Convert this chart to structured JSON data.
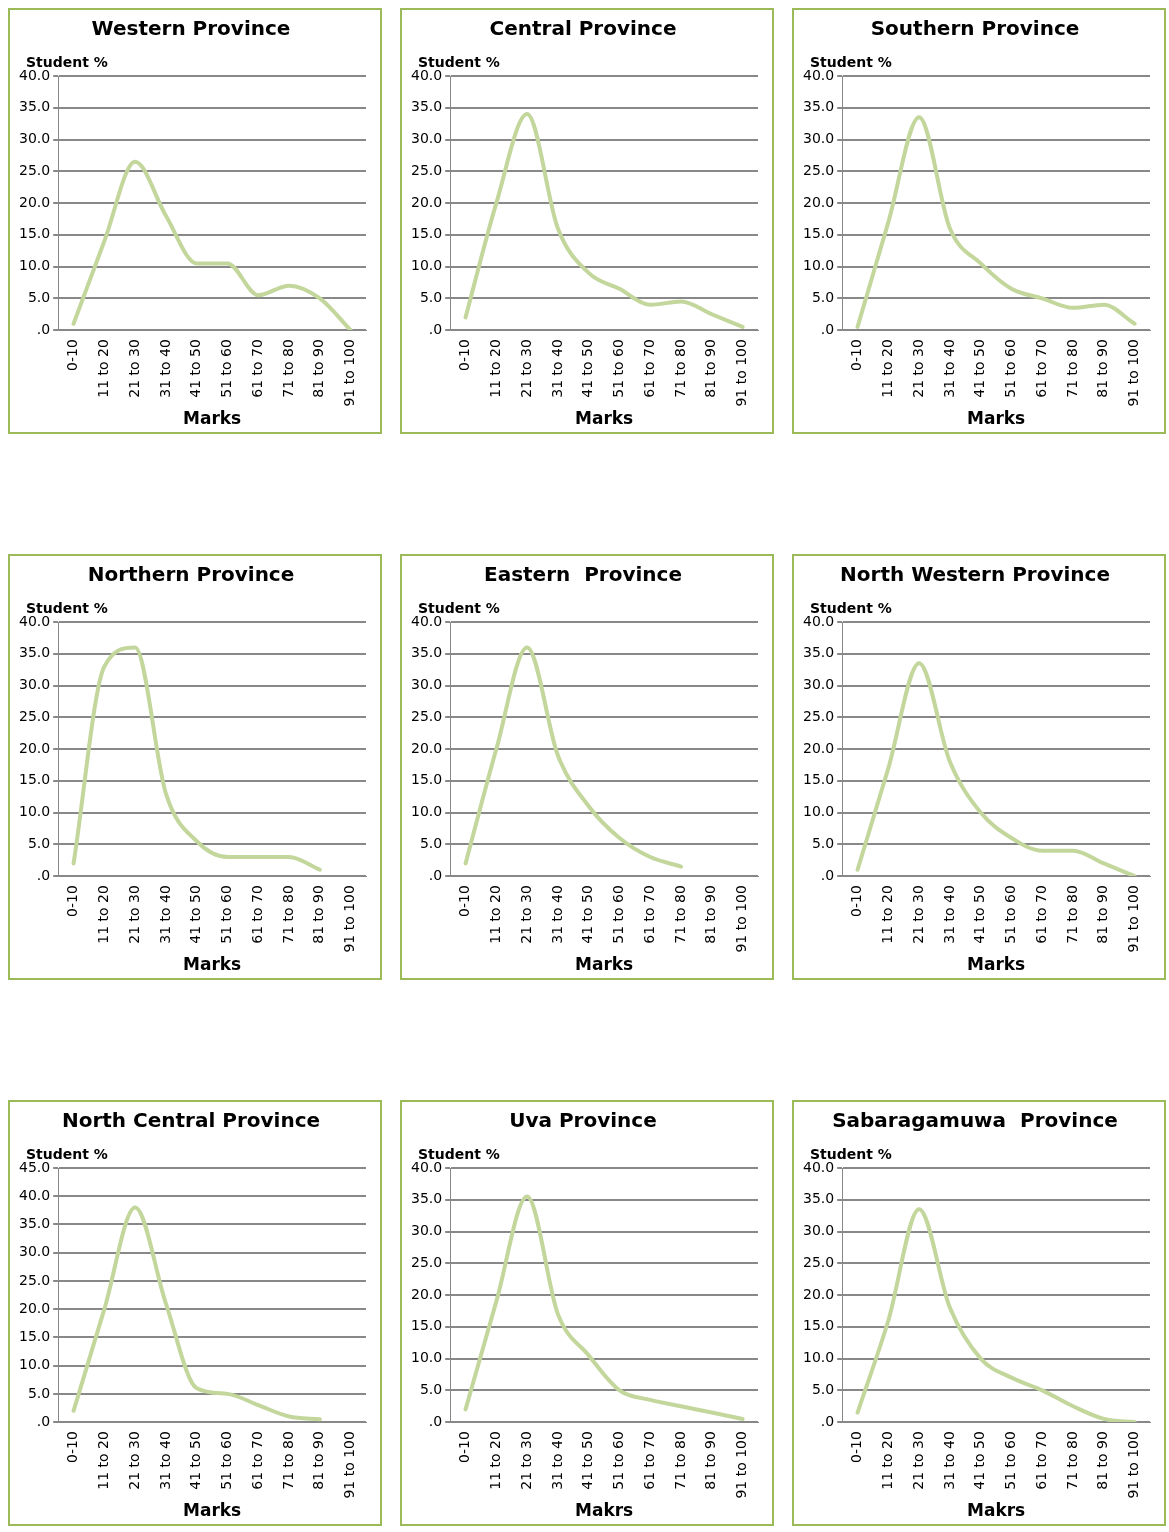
{
  "chart_data": [
    {
      "type": "line",
      "title": "Western Province",
      "ylabel": "Student %",
      "xlabel": "Marks",
      "categories": [
        "0-10",
        "11 to 20",
        "21 to 30",
        "31 to 40",
        "41 to 50",
        "51 to 60",
        "61 to 70",
        "71 to 80",
        "81 to 90",
        "91 to 100"
      ],
      "series": [
        {
          "color": "#c3d69b",
          "values": [
            1,
            14,
            26.5,
            18,
            10.5,
            10.5,
            5.5,
            7,
            5,
            0
          ]
        }
      ],
      "ylim": [
        0,
        40
      ],
      "yticks": [
        {
          "value": 0,
          "label": ".0"
        },
        {
          "value": 5,
          "label": "5.0"
        },
        {
          "value": 10,
          "label": "10.0"
        },
        {
          "value": 15,
          "label": "15.0"
        },
        {
          "value": 20,
          "label": "20.0"
        },
        {
          "value": 25,
          "label": "25.0"
        },
        {
          "value": 30,
          "label": "30.0"
        },
        {
          "value": 35,
          "label": "35.0"
        },
        {
          "value": 40,
          "label": "40.0"
        }
      ],
      "grid": "y",
      "legend": false
    },
    {
      "type": "line",
      "title": "Central Province",
      "ylabel": "Student %",
      "xlabel": "Marks",
      "categories": [
        "0-10",
        "11 to 20",
        "21 to 30",
        "31 to 40",
        "41 to 50",
        "51 to 60",
        "61 to 70",
        "71 to 80",
        "81 to 90",
        "91 to 100"
      ],
      "series": [
        {
          "color": "#c3d69b",
          "values": [
            2,
            20,
            34,
            16,
            9,
            6.5,
            4,
            4.5,
            2.5,
            0.5
          ]
        }
      ],
      "ylim": [
        0,
        40
      ],
      "yticks": [
        {
          "value": 0,
          "label": ".0"
        },
        {
          "value": 5,
          "label": "5.0"
        },
        {
          "value": 10,
          "label": "10.0"
        },
        {
          "value": 15,
          "label": "15.0"
        },
        {
          "value": 20,
          "label": "20.0"
        },
        {
          "value": 25,
          "label": "25.0"
        },
        {
          "value": 30,
          "label": "30.0"
        },
        {
          "value": 35,
          "label": "35.0"
        },
        {
          "value": 40,
          "label": "40.0"
        }
      ],
      "grid": "y",
      "legend": false
    },
    {
      "type": "line",
      "title": "Southern Province",
      "ylabel": "Student %",
      "xlabel": "Marks",
      "categories": [
        "0-10",
        "11 to 20",
        "21 to 30",
        "31 to 40",
        "41 to 50",
        "51 to 60",
        "61 to 70",
        "71 to 80",
        "81 to 90",
        "91 to 100"
      ],
      "series": [
        {
          "color": "#c3d69b",
          "values": [
            0.5,
            17,
            33.5,
            16,
            10.5,
            6.5,
            5,
            3.5,
            4,
            1
          ]
        }
      ],
      "ylim": [
        0,
        40
      ],
      "yticks": [
        {
          "value": 0,
          "label": ".0"
        },
        {
          "value": 5,
          "label": "5.0"
        },
        {
          "value": 10,
          "label": "10.0"
        },
        {
          "value": 15,
          "label": "15.0"
        },
        {
          "value": 20,
          "label": "20.0"
        },
        {
          "value": 25,
          "label": "25.0"
        },
        {
          "value": 30,
          "label": "30.0"
        },
        {
          "value": 35,
          "label": "35.0"
        },
        {
          "value": 40,
          "label": "40.0"
        }
      ],
      "grid": "y",
      "legend": false
    },
    {
      "type": "line",
      "title": "Northern Province",
      "ylabel": "Student %",
      "xlabel": "Marks",
      "categories": [
        "0-10",
        "11 to 20",
        "21 to 30",
        "31 to 40",
        "41 to 50",
        "51 to 60",
        "61 to 70",
        "71 to 80",
        "81 to 90",
        "91 to 100"
      ],
      "series": [
        {
          "color": "#c3d69b",
          "values": [
            2,
            33,
            36,
            13,
            5.5,
            3,
            3,
            3,
            1,
            null
          ]
        }
      ],
      "ylim": [
        0,
        40
      ],
      "yticks": [
        {
          "value": 0,
          "label": ".0"
        },
        {
          "value": 5,
          "label": "5.0"
        },
        {
          "value": 10,
          "label": "10.0"
        },
        {
          "value": 15,
          "label": "15.0"
        },
        {
          "value": 20,
          "label": "20.0"
        },
        {
          "value": 25,
          "label": "25.0"
        },
        {
          "value": 30,
          "label": "30.0"
        },
        {
          "value": 35,
          "label": "35.0"
        },
        {
          "value": 40,
          "label": "40.0"
        }
      ],
      "grid": "y",
      "legend": false
    },
    {
      "type": "line",
      "title": "Eastern  Province",
      "ylabel": "Student %",
      "xlabel": "Marks",
      "categories": [
        "0-10",
        "11 to 20",
        "21 to 30",
        "31 to 40",
        "41 to 50",
        "51 to 60",
        "61 to 70",
        "71 to 80",
        "81 to 90",
        "91 to 100"
      ],
      "series": [
        {
          "color": "#c3d69b",
          "values": [
            2,
            20,
            36,
            19,
            11,
            6,
            3,
            1.5,
            null,
            null
          ]
        }
      ],
      "ylim": [
        0,
        40
      ],
      "yticks": [
        {
          "value": 0,
          "label": ".0"
        },
        {
          "value": 5,
          "label": "5.0"
        },
        {
          "value": 10,
          "label": "10.0"
        },
        {
          "value": 15,
          "label": "15.0"
        },
        {
          "value": 20,
          "label": "20.0"
        },
        {
          "value": 25,
          "label": "25.0"
        },
        {
          "value": 30,
          "label": "30.0"
        },
        {
          "value": 35,
          "label": "35.0"
        },
        {
          "value": 40,
          "label": "40.0"
        }
      ],
      "grid": "y",
      "legend": false
    },
    {
      "type": "line",
      "title": "North Western Province",
      "ylabel": "Student %",
      "xlabel": "Marks",
      "categories": [
        "0-10",
        "11 to 20",
        "21 to 30",
        "31 to 40",
        "41 to 50",
        "51 to 60",
        "61 to 70",
        "71 to 80",
        "81 to 90",
        "91 to 100"
      ],
      "series": [
        {
          "color": "#c3d69b",
          "values": [
            1,
            17,
            33.5,
            18,
            10,
            6,
            4,
            4,
            2,
            0
          ]
        }
      ],
      "ylim": [
        0,
        40
      ],
      "yticks": [
        {
          "value": 0,
          "label": ".0"
        },
        {
          "value": 5,
          "label": "5.0"
        },
        {
          "value": 10,
          "label": "10.0"
        },
        {
          "value": 15,
          "label": "15.0"
        },
        {
          "value": 20,
          "label": "20.0"
        },
        {
          "value": 25,
          "label": "25.0"
        },
        {
          "value": 30,
          "label": "30.0"
        },
        {
          "value": 35,
          "label": "35.0"
        },
        {
          "value": 40,
          "label": "40.0"
        }
      ],
      "grid": "y",
      "legend": false
    },
    {
      "type": "line",
      "title": "North Central Province",
      "ylabel": "Student %",
      "xlabel": "Marks",
      "categories": [
        "0-10",
        "11 to 20",
        "21 to 30",
        "31 to 40",
        "41 to 50",
        "51 to 60",
        "61 to 70",
        "71 to 80",
        "81 to 90",
        "91 to 100"
      ],
      "series": [
        {
          "color": "#c3d69b",
          "values": [
            2,
            20,
            38,
            21,
            6,
            5,
            3,
            1,
            0.5,
            null
          ]
        }
      ],
      "ylim": [
        0,
        45
      ],
      "yticks": [
        {
          "value": 0,
          "label": ".0"
        },
        {
          "value": 5,
          "label": "5.0"
        },
        {
          "value": 10,
          "label": "10.0"
        },
        {
          "value": 15,
          "label": "15.0"
        },
        {
          "value": 20,
          "label": "20.0"
        },
        {
          "value": 25,
          "label": "25.0"
        },
        {
          "value": 30,
          "label": "30.0"
        },
        {
          "value": 35,
          "label": "35.0"
        },
        {
          "value": 40,
          "label": "40.0"
        },
        {
          "value": 45,
          "label": "45.0"
        }
      ],
      "grid": "y",
      "legend": false
    },
    {
      "type": "line",
      "title": "Uva Province",
      "ylabel": "Student %",
      "xlabel": "Makrs",
      "categories": [
        "0-10",
        "11 to 20",
        "21 to 30",
        "31 to 40",
        "41 to 50",
        "51 to 60",
        "61 to 70",
        "71 to 80",
        "81 to 90",
        "91 to 100"
      ],
      "series": [
        {
          "color": "#c3d69b",
          "values": [
            2,
            19,
            35.5,
            17,
            10.5,
            5,
            3.5,
            2.5,
            1.5,
            0.5
          ]
        }
      ],
      "ylim": [
        0,
        40
      ],
      "yticks": [
        {
          "value": 0,
          "label": ".0"
        },
        {
          "value": 5,
          "label": "5.0"
        },
        {
          "value": 10,
          "label": "10.0"
        },
        {
          "value": 15,
          "label": "15.0"
        },
        {
          "value": 20,
          "label": "20.0"
        },
        {
          "value": 25,
          "label": "25.0"
        },
        {
          "value": 30,
          "label": "30.0"
        },
        {
          "value": 35,
          "label": "35.0"
        },
        {
          "value": 40,
          "label": "40.0"
        }
      ],
      "grid": "y",
      "legend": false
    },
    {
      "type": "line",
      "title": "Sabaragamuwa  Province",
      "ylabel": "Student %",
      "xlabel": "Makrs",
      "categories": [
        "0-10",
        "11 to 20",
        "21 to 30",
        "31 to 40",
        "41 to 50",
        "51 to 60",
        "61 to 70",
        "71 to 80",
        "81 to 90",
        "91 to 100"
      ],
      "series": [
        {
          "color": "#c3d69b",
          "values": [
            1.5,
            16,
            33.5,
            18,
            10,
            7,
            5,
            2.5,
            0.5,
            0
          ]
        }
      ],
      "ylim": [
        0,
        40
      ],
      "yticks": [
        {
          "value": 0,
          "label": ".0"
        },
        {
          "value": 5,
          "label": "5.0"
        },
        {
          "value": 10,
          "label": "10.0"
        },
        {
          "value": 15,
          "label": "15.0"
        },
        {
          "value": 20,
          "label": "20.0"
        },
        {
          "value": 25,
          "label": "25.0"
        },
        {
          "value": 30,
          "label": "30.0"
        },
        {
          "value": 35,
          "label": "35.0"
        },
        {
          "value": 40,
          "label": "40.0"
        }
      ],
      "grid": "y",
      "legend": false
    }
  ]
}
